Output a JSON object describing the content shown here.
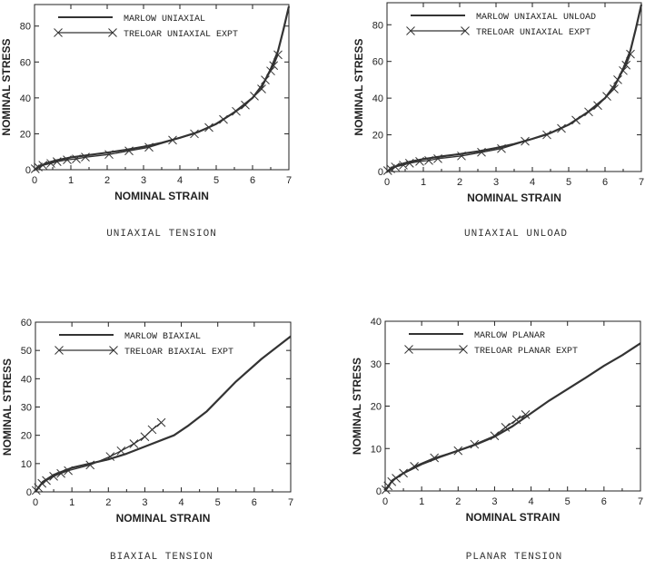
{
  "colors": {
    "line": "#333333",
    "frame": "#222222",
    "background": "#ffffff"
  },
  "chart_data": [
    {
      "type": "line",
      "caption": "UNIAXIAL TENSION",
      "xlabel": "NOMINAL STRAIN",
      "ylabel": "NOMINAL STRESS",
      "xlim": [
        0,
        7
      ],
      "ylim": [
        0,
        92
      ],
      "xticks": [
        0,
        1,
        2,
        3,
        4,
        5,
        6,
        7
      ],
      "yticks": [
        0,
        20,
        40,
        60,
        80
      ],
      "grid": false,
      "legend_position": "top-left",
      "series": [
        {
          "name": "MARLOW UNIAXIAL",
          "marker": "none",
          "x": [
            0,
            0.3,
            0.6,
            1.0,
            1.5,
            2.0,
            2.5,
            3.0,
            3.5,
            4.0,
            4.5,
            5.0,
            5.5,
            6.0,
            6.3,
            6.5,
            6.7,
            6.85,
            7.0
          ],
          "y": [
            0,
            3.5,
            5.2,
            6.8,
            8.2,
            9.5,
            11,
            12.8,
            15,
            17.8,
            21,
            25.5,
            32,
            40,
            48,
            56,
            66,
            78,
            91
          ]
        },
        {
          "name": "TRELOAR UNIAXIAL EXPT",
          "marker": "x",
          "x": [
            0.02,
            0.1,
            0.23,
            0.45,
            0.62,
            0.9,
            1.15,
            1.4,
            2.05,
            2.6,
            3.15,
            3.8,
            4.4,
            4.8,
            5.2,
            5.55,
            5.8,
            6.05,
            6.25,
            6.35,
            6.5,
            6.58,
            6.7
          ],
          "y": [
            0.5,
            1.5,
            2.5,
            3.5,
            4.5,
            5.5,
            6.0,
            7.0,
            8.5,
            10.5,
            12.5,
            16.5,
            20,
            23.5,
            28,
            32.5,
            36,
            41,
            45,
            50,
            55,
            58,
            64
          ]
        }
      ]
    },
    {
      "type": "line",
      "caption": "UNIAXIAL UNLOAD",
      "xlabel": "NOMINAL STRAIN",
      "ylabel": "NOMINAL STRESS",
      "xlim": [
        0,
        7
      ],
      "ylim": [
        0,
        92
      ],
      "xticks": [
        0,
        1,
        2,
        3,
        4,
        5,
        6,
        7
      ],
      "yticks": [
        0,
        20,
        40,
        60,
        80
      ],
      "grid": false,
      "legend_position": "top-left",
      "series": [
        {
          "name": "MARLOW UNIAXIAL UNLOAD",
          "marker": "none",
          "x": [
            0,
            0.3,
            0.6,
            1.0,
            1.5,
            2.0,
            2.5,
            3.0,
            3.5,
            4.0,
            4.5,
            5.0,
            5.5,
            6.0,
            6.3,
            6.5,
            6.7,
            6.85,
            7.0
          ],
          "y": [
            0,
            3.5,
            5.2,
            6.8,
            8.2,
            9.5,
            11,
            12.8,
            15,
            17.8,
            21,
            25.5,
            32,
            40,
            48,
            56,
            66,
            78,
            91
          ]
        },
        {
          "name": "TRELOAR UNIAXIAL EXPT",
          "marker": "x",
          "x": [
            0.02,
            0.1,
            0.23,
            0.45,
            0.62,
            0.9,
            1.15,
            1.4,
            2.05,
            2.6,
            3.15,
            3.8,
            4.4,
            4.8,
            5.2,
            5.55,
            5.8,
            6.05,
            6.25,
            6.35,
            6.5,
            6.58,
            6.7
          ],
          "y": [
            0.5,
            1.5,
            2.5,
            3.5,
            4.5,
            5.5,
            6.0,
            7.0,
            8.5,
            10.5,
            12.5,
            16.5,
            20,
            23.5,
            28,
            32.5,
            36,
            41,
            45,
            50,
            55,
            58,
            64
          ]
        }
      ]
    },
    {
      "type": "line",
      "caption": "BIAXIAL TENSION",
      "xlabel": "NOMINAL STRAIN",
      "ylabel": "NOMINAL STRESS",
      "xlim": [
        0,
        7
      ],
      "ylim": [
        0,
        60
      ],
      "xticks": [
        0,
        1,
        2,
        3,
        4,
        5,
        6,
        7
      ],
      "yticks": [
        0,
        10,
        20,
        30,
        40,
        50,
        60
      ],
      "grid": false,
      "legend_position": "top-left",
      "series": [
        {
          "name": "MARLOW BIAXIAL",
          "marker": "none",
          "x": [
            0,
            0.2,
            0.5,
            1.0,
            1.5,
            2.0,
            2.5,
            3.0,
            3.5,
            3.8,
            4.2,
            4.7,
            5.5,
            6.2,
            7.0
          ],
          "y": [
            0,
            3.5,
            6,
            8.5,
            10,
            11.5,
            13.5,
            16,
            18.5,
            20,
            23.5,
            28.5,
            39,
            47,
            55
          ]
        },
        {
          "name": "TRELOAR BIAXIAL EXPT",
          "marker": "x",
          "x": [
            0.02,
            0.08,
            0.18,
            0.3,
            0.5,
            0.7,
            0.9,
            1.5,
            2.05,
            2.35,
            2.7,
            3.0,
            3.2,
            3.45
          ],
          "y": [
            0.5,
            1.5,
            3.0,
            4.0,
            5.5,
            6.5,
            7.5,
            9.5,
            12.5,
            14.5,
            17,
            19.5,
            22,
            24.5
          ]
        }
      ]
    },
    {
      "type": "line",
      "caption": "PLANAR TENSION",
      "xlabel": "NOMINAL STRAIN",
      "ylabel": "NOMINAL STRESS",
      "xlim": [
        0,
        7
      ],
      "ylim": [
        0,
        40
      ],
      "xticks": [
        0,
        1,
        2,
        3,
        4,
        5,
        6,
        7
      ],
      "yticks": [
        0,
        10,
        20,
        30,
        40
      ],
      "grid": false,
      "legend_position": "top-left",
      "series": [
        {
          "name": "MARLOW PLANAR",
          "marker": "none",
          "x": [
            0,
            0.2,
            0.5,
            1.0,
            1.5,
            2.0,
            2.5,
            3.0,
            3.5,
            4.0,
            4.5,
            5.0,
            5.5,
            6.0,
            6.5,
            7.0
          ],
          "y": [
            0,
            2.5,
            4.2,
            6.3,
            8.0,
            9.5,
            11.0,
            12.8,
            15.3,
            18.3,
            21.3,
            24.0,
            26.7,
            29.5,
            32.0,
            34.8
          ]
        },
        {
          "name": "TRELOAR PLANAR EXPT",
          "marker": "x",
          "x": [
            0.02,
            0.08,
            0.18,
            0.3,
            0.5,
            0.8,
            1.35,
            2.0,
            2.45,
            3.0,
            3.3,
            3.6,
            3.85
          ],
          "y": [
            0.3,
            1.2,
            2.2,
            3.0,
            4.2,
            5.8,
            7.8,
            9.5,
            11.0,
            13.0,
            15.0,
            16.8,
            18.0
          ]
        }
      ]
    }
  ]
}
